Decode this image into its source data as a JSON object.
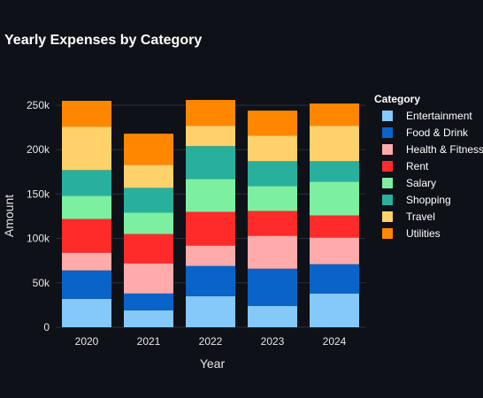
{
  "chart_data": {
    "type": "bar",
    "stacked": true,
    "title": "Yearly Expenses by Category",
    "xlabel": "Year",
    "ylabel": "Amount",
    "categories": [
      "2020",
      "2021",
      "2022",
      "2023",
      "2024"
    ],
    "ylim": [
      0,
      262000
    ],
    "yticks": [
      0,
      50000,
      100000,
      150000,
      200000,
      250000
    ],
    "ytick_labels": [
      "0",
      "50k",
      "100k",
      "150k",
      "200k",
      "250k"
    ],
    "grid": true,
    "legend": {
      "title": "Category",
      "position": "right"
    },
    "series": [
      {
        "name": "Entertainment",
        "color": "#85c8fa",
        "values": [
          32000,
          19000,
          35000,
          24000,
          38000
        ]
      },
      {
        "name": "Food & Drink",
        "color": "#0a63c8",
        "values": [
          32000,
          19000,
          34000,
          42000,
          33000
        ]
      },
      {
        "name": "Health & Fitness",
        "color": "#ffabab",
        "values": [
          20000,
          34000,
          23000,
          37000,
          30000
        ]
      },
      {
        "name": "Rent",
        "color": "#ff2b2b",
        "values": [
          38000,
          33000,
          38000,
          28000,
          25000
        ]
      },
      {
        "name": "Salary",
        "color": "#7defa1",
        "values": [
          26000,
          24000,
          37000,
          28000,
          38000
        ]
      },
      {
        "name": "Shopping",
        "color": "#29b09d",
        "values": [
          29000,
          28000,
          37000,
          28000,
          23000
        ]
      },
      {
        "name": "Travel",
        "color": "#ffd16a",
        "values": [
          49000,
          26000,
          23000,
          29000,
          40000
        ]
      },
      {
        "name": "Utilities",
        "color": "#ff8700",
        "values": [
          29000,
          35000,
          29000,
          28000,
          25000
        ]
      }
    ]
  }
}
